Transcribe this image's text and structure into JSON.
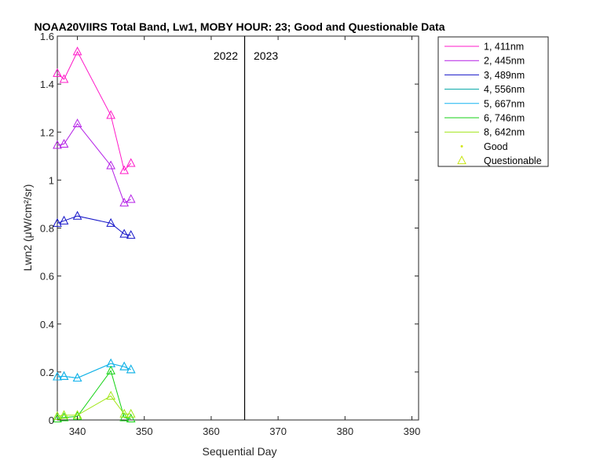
{
  "chart_data": {
    "type": "line",
    "title": "NOAA20VIIRS Total Band, Lw1, MOBY HOUR: 23;  Good and Questionable Data",
    "xlabel": "Sequential Day",
    "ylabel": "Lwn2 (μW/cm²/sr)",
    "xlim": [
      337,
      391
    ],
    "ylim": [
      0,
      1.6
    ],
    "xticks": [
      340,
      350,
      360,
      370,
      380,
      390
    ],
    "yticks": [
      0,
      0.2,
      0.4,
      0.6,
      0.8,
      1,
      1.2,
      1.4,
      1.6
    ],
    "ytick_labels": [
      "0",
      "0.2",
      "0.4",
      "0.6",
      "0.8",
      "1",
      "1.2",
      "1.4",
      "1.6"
    ],
    "grid": false,
    "legend_position": "outside-top-right",
    "year_divider": {
      "x": 365,
      "left_label": "2022",
      "right_label": "2023"
    },
    "x": [
      337,
      338,
      340,
      345,
      347,
      348
    ],
    "series": [
      {
        "name": "1, 411nm",
        "color": "#ff19c8",
        "values": [
          1.445,
          1.42,
          1.535,
          1.27,
          1.04,
          1.07
        ]
      },
      {
        "name": "2, 445nm",
        "color": "#b41ee6",
        "values": [
          1.145,
          1.15,
          1.235,
          1.06,
          0.905,
          0.92
        ]
      },
      {
        "name": "3, 489nm",
        "color": "#1414c8",
        "values": [
          0.82,
          0.83,
          0.85,
          0.82,
          0.775,
          0.77
        ]
      },
      {
        "name": "4, 556nm",
        "color": "#00a5a5",
        "values": [
          0.18,
          0.182,
          0.175,
          0.235,
          0.222,
          0.21
        ]
      },
      {
        "name": "5, 667nm",
        "color": "#14b4f0",
        "values": [
          0.18,
          0.182,
          0.175,
          0.235,
          0.222,
          0.21
        ]
      },
      {
        "name": "6, 746nm",
        "color": "#14d214",
        "values": [
          0.005,
          0.01,
          0.015,
          0.205,
          0.01,
          0.005
        ]
      },
      {
        "name": "8, 642nm",
        "color": "#a0e614",
        "values": [
          0.015,
          0.02,
          0.02,
          0.1,
          0.025,
          0.025
        ]
      }
    ],
    "legend_markers": [
      {
        "name": "Good",
        "color": "#d2e614",
        "symbol": "dot"
      },
      {
        "name": "Questionable",
        "color": "#c8e614",
        "symbol": "triangle"
      }
    ]
  }
}
